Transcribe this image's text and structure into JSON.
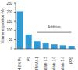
{
  "chart_data": {
    "type": "bar",
    "y_label": "Volume expansion (%)",
    "annotation": "Addition",
    "categories": [
      "Pt + 4.0% Pd",
      "Pd",
      "PMMA 1",
      "Sulfate 0.5",
      "Sulfate 1.0",
      "Sulfate 2.0",
      "PPS"
    ],
    "values": [
      205,
      78,
      42,
      30,
      25,
      20,
      15
    ],
    "color": "#2e9bd6",
    "ylim": [
      0,
      250
    ],
    "yticks": [
      0,
      50,
      100,
      150,
      200,
      250
    ],
    "grid": false
  }
}
